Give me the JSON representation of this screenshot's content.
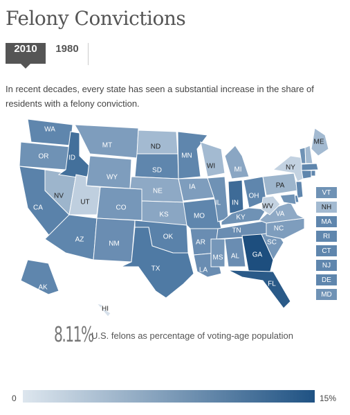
{
  "header": {
    "title": "Felony Convictions"
  },
  "tabs": {
    "items": [
      "2010",
      "1980"
    ],
    "active": 0
  },
  "description": "In recent decades, every state has seen a substantial increase in the share of residents with a felony conviction.",
  "map": {
    "states": [
      {
        "label": "WA",
        "color": "#5f86ad"
      },
      {
        "label": "OR",
        "color": "#6f92b5"
      },
      {
        "label": "CA",
        "color": "#5a82aa"
      },
      {
        "label": "NV",
        "color": "#9db5cc"
      },
      {
        "label": "ID",
        "color": "#43709b"
      },
      {
        "label": "MT",
        "color": "#7e9dbd"
      },
      {
        "label": "WY",
        "color": "#7e9dbd"
      },
      {
        "label": "UT",
        "color": "#bfcfdf"
      },
      {
        "label": "CO",
        "color": "#7697b9"
      },
      {
        "label": "AZ",
        "color": "#5f86ad"
      },
      {
        "label": "NM",
        "color": "#6a8db2"
      },
      {
        "label": "ND",
        "color": "#a3bad1"
      },
      {
        "label": "SD",
        "color": "#5f86ad"
      },
      {
        "label": "NE",
        "color": "#8ea9c5"
      },
      {
        "label": "KS",
        "color": "#8aa6c3"
      },
      {
        "label": "OK",
        "color": "#5a82aa"
      },
      {
        "label": "TX",
        "color": "#4f7aa4"
      },
      {
        "label": "MN",
        "color": "#5f86ad"
      },
      {
        "label": "IA",
        "color": "#7e9dbd"
      },
      {
        "label": "MO",
        "color": "#5f86ad"
      },
      {
        "label": "AR",
        "color": "#6a8db2"
      },
      {
        "label": "LA",
        "color": "#6a8db2"
      },
      {
        "label": "WI",
        "color": "#a3bad1"
      },
      {
        "label": "IL",
        "color": "#6f92b5"
      },
      {
        "label": "MI",
        "color": "#8aa6c3"
      },
      {
        "label": "IN",
        "color": "#3e6b97"
      },
      {
        "label": "OH",
        "color": "#5f86ad"
      },
      {
        "label": "KY",
        "color": "#6f92b5"
      },
      {
        "label": "TN",
        "color": "#6a8db2"
      },
      {
        "label": "MS",
        "color": "#7697b9"
      },
      {
        "label": "AL",
        "color": "#6a8db2"
      },
      {
        "label": "GA",
        "color": "#1d4e7e"
      },
      {
        "label": "FL",
        "color": "#2a5a88"
      },
      {
        "label": "SC",
        "color": "#7697b9"
      },
      {
        "label": "NC",
        "color": "#7e9dbd"
      },
      {
        "label": "VA",
        "color": "#8ea9c5"
      },
      {
        "label": "WV",
        "color": "#c3d2e1"
      },
      {
        "label": "PA",
        "color": "#9db5cc"
      },
      {
        "label": "NY",
        "color": "#c3d2e1"
      },
      {
        "label": "ME",
        "color": "#a3bad1"
      },
      {
        "label": "AK",
        "color": "#5f86ad"
      },
      {
        "label": "HI",
        "color": "#d6e0ea"
      },
      {
        "label": "VT",
        "color": "#6f92b5"
      },
      {
        "label": "NH",
        "color": "#a3bad1"
      },
      {
        "label": "MA",
        "color": "#5f86ad"
      },
      {
        "label": "RI",
        "color": "#5f86ad"
      },
      {
        "label": "CT",
        "color": "#5f86ad"
      },
      {
        "label": "NJ",
        "color": "#5f86ad"
      },
      {
        "label": "DE",
        "color": "#5f86ad"
      },
      {
        "label": "MD",
        "color": "#6f92b5"
      }
    ]
  },
  "summary": {
    "value": "8.11%",
    "label": "U.S. felons as percentage of voting-age population"
  },
  "scale": {
    "min_label": "0",
    "max_label": "15%",
    "colors": [
      "#dde6ee",
      "#1f5283"
    ]
  }
}
